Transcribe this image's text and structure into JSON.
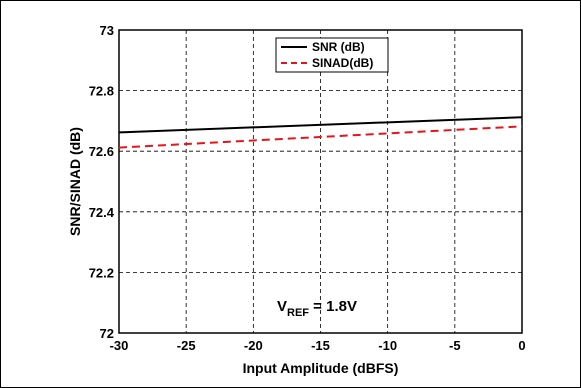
{
  "chart_data": {
    "type": "line",
    "xlabel": "Input Amplitude (dBFS)",
    "ylabel": "SNR/SINAD (dB)",
    "xlim": [
      -30,
      0
    ],
    "ylim": [
      72,
      73
    ],
    "x_ticks": [
      -30,
      -25,
      -20,
      -15,
      -10,
      -5,
      0
    ],
    "y_ticks": [
      72,
      72.2,
      72.4,
      72.6,
      72.8,
      73
    ],
    "x_tick_labels": [
      "-30",
      "-25",
      "-20",
      "-15",
      "-10",
      "-5",
      "0"
    ],
    "y_tick_labels": [
      "72",
      "72.2",
      "72.4",
      "72.6",
      "72.8",
      "73"
    ],
    "grid": true,
    "legend_position": "top-center",
    "series": [
      {
        "name": "SNR (dB)",
        "color": "#000000",
        "dash": "solid",
        "x": [
          -30,
          0
        ],
        "y": [
          72.662,
          72.712
        ]
      },
      {
        "name": "SINAD(dB)",
        "color": "#e8141b",
        "dash": "dashed",
        "x": [
          -30,
          0
        ],
        "y": [
          72.612,
          72.682
        ]
      }
    ],
    "annotation": {
      "main": "V",
      "sub": "REF",
      "rest": " = 1.8V"
    }
  }
}
